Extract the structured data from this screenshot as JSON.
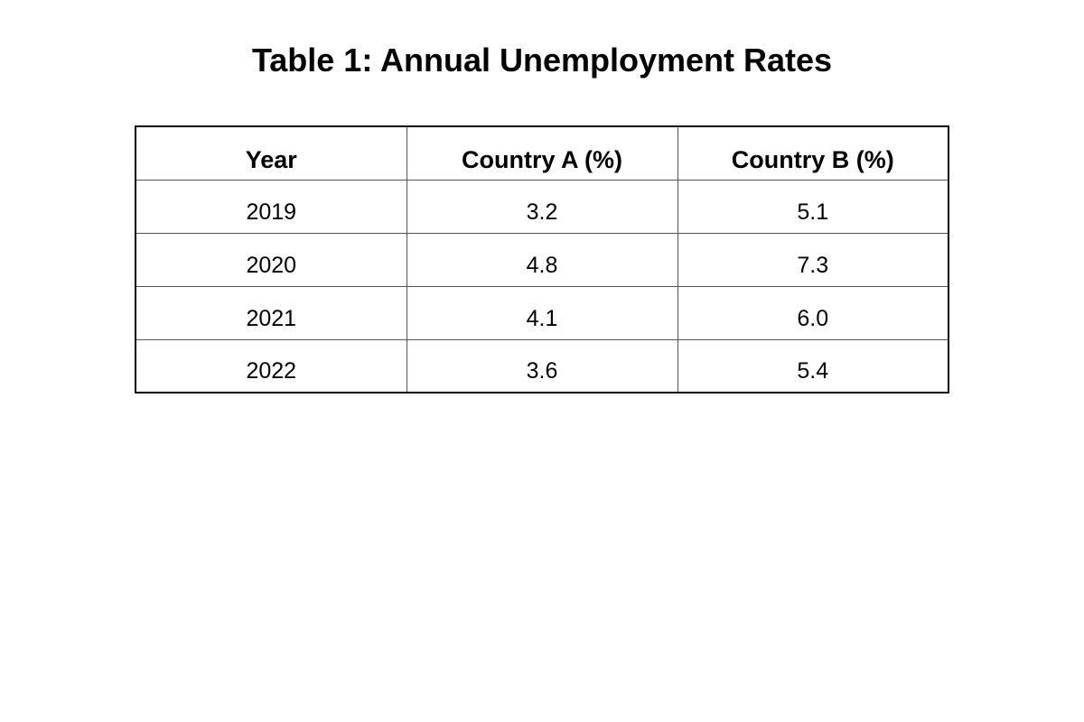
{
  "title": "Table 1: Annual Unemployment Rates",
  "table": {
    "header": [
      "Year",
      "Country A (%)",
      "Country B (%)"
    ],
    "rows": [
      [
        "2019",
        "3.2",
        "5.1"
      ],
      [
        "2020",
        "4.8",
        "7.3"
      ],
      [
        "2021",
        "4.1",
        "6.0"
      ],
      [
        "2022",
        "3.6",
        "5.4"
      ]
    ]
  }
}
